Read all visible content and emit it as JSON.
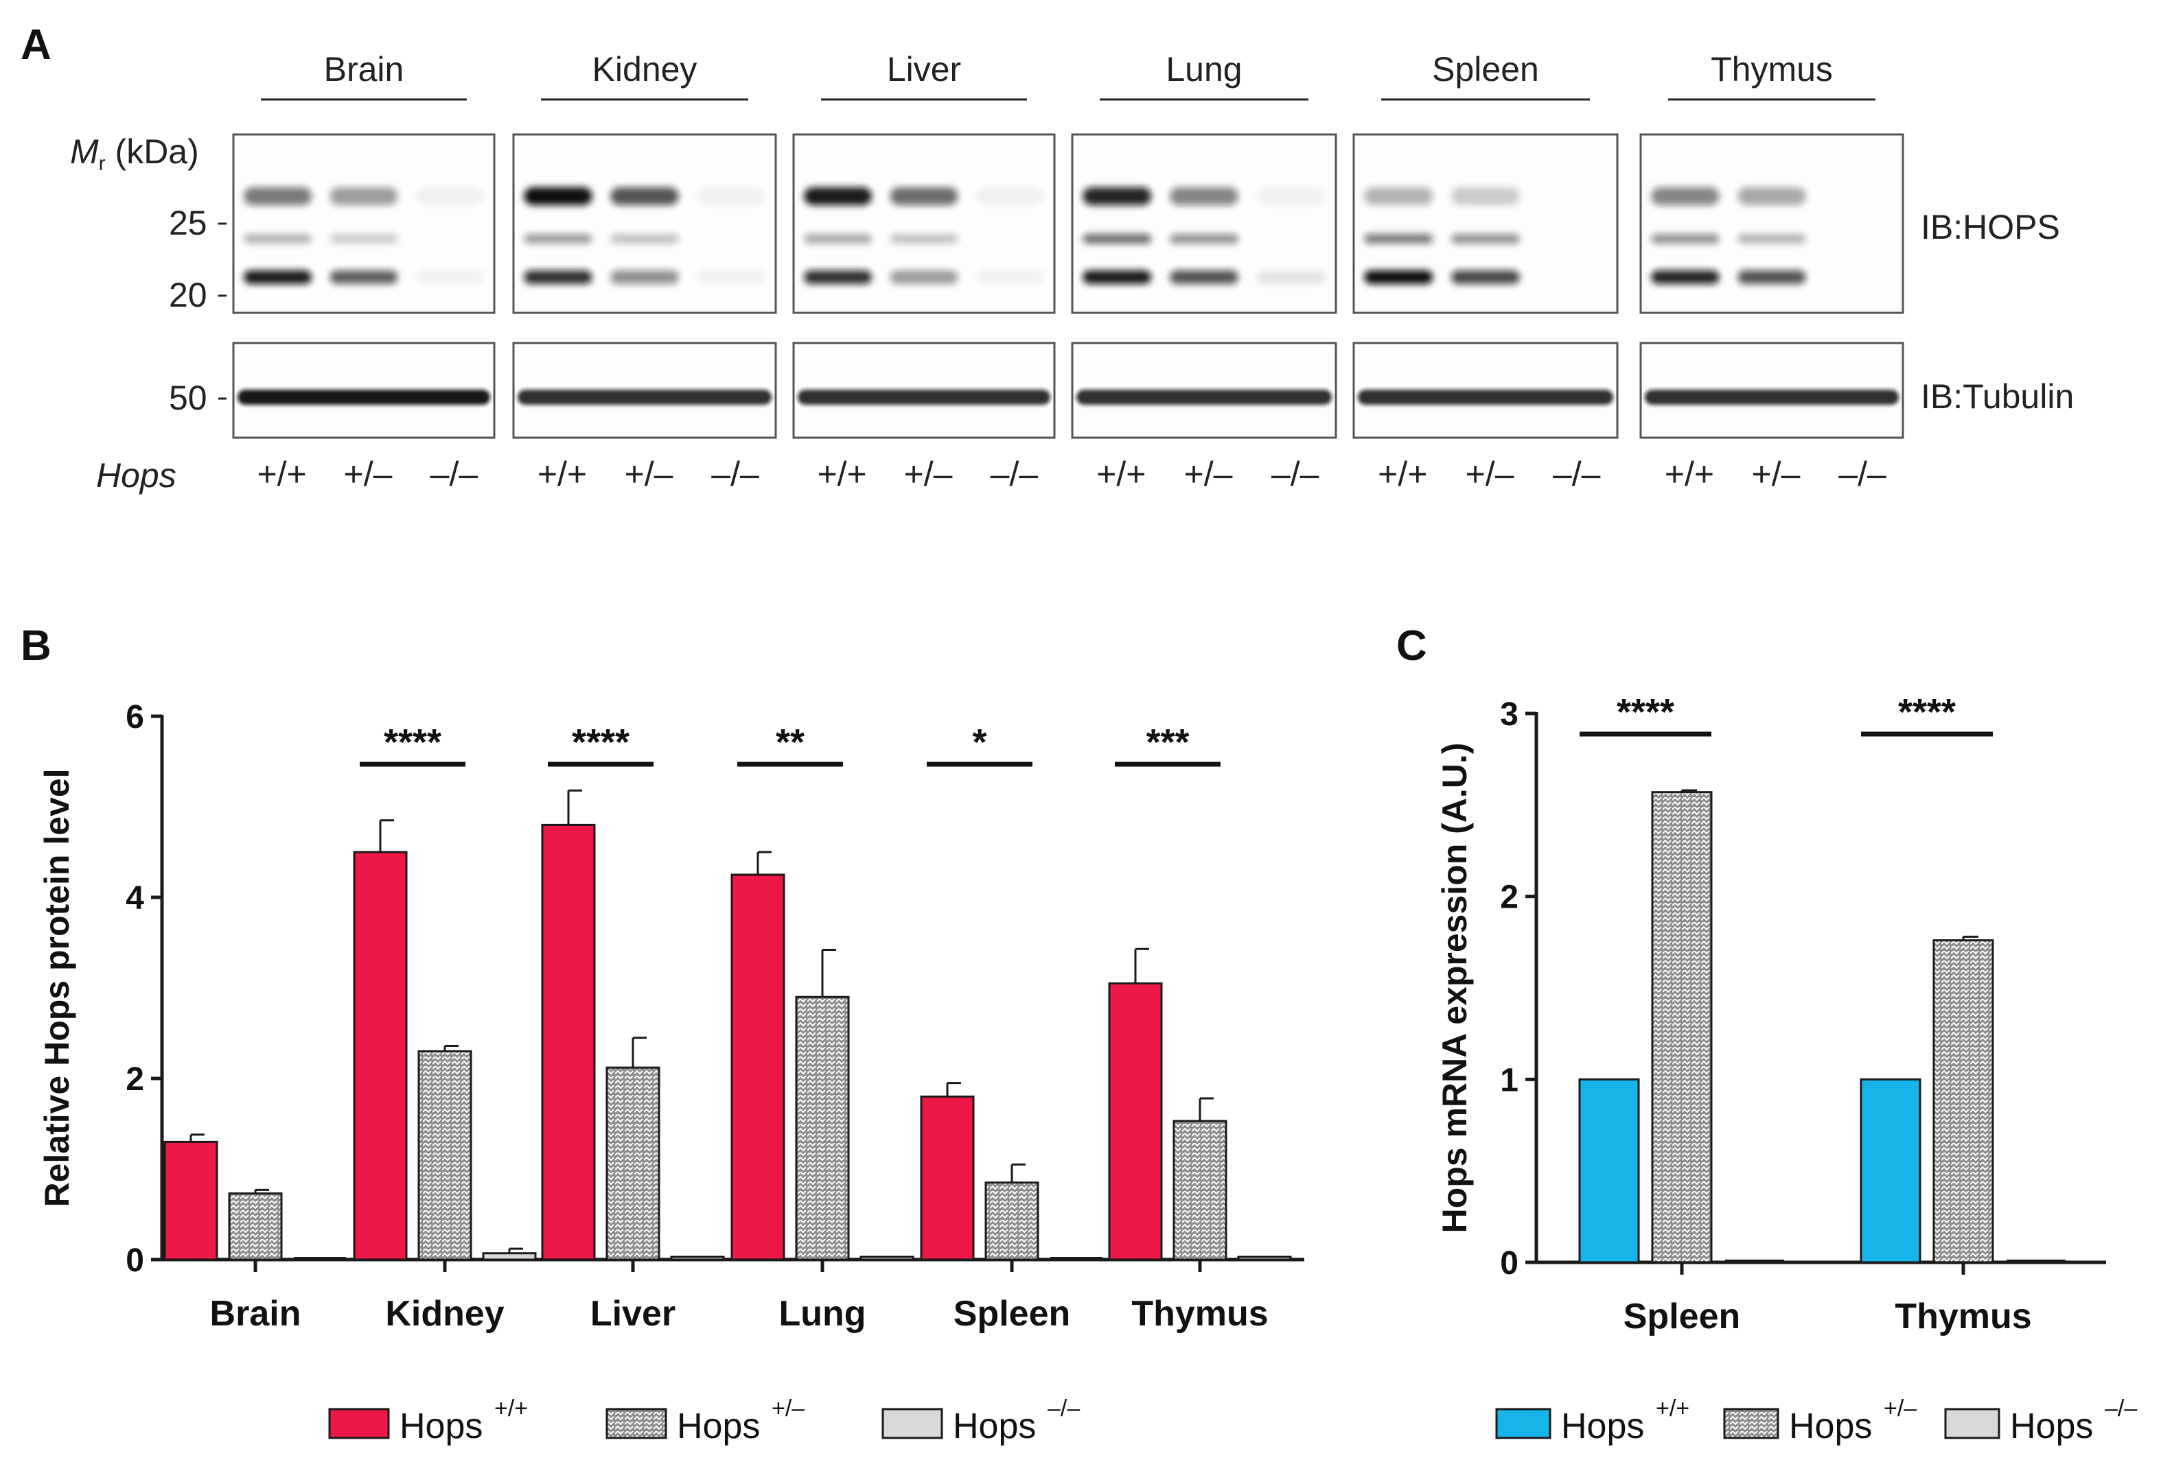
{
  "panel_a": {
    "letter": "A",
    "tissues": [
      "Brain",
      "Kidney",
      "Liver",
      "Lung",
      "Spleen",
      "Thymus"
    ],
    "mr_label_main": "M",
    "mr_label_sub": "r",
    "mr_label_rest": " (kDa)",
    "marker_values": [
      "25",
      "20",
      "50"
    ],
    "blot_labels": [
      "IB:HOPS",
      "IB:Tubulin"
    ],
    "genotype_row_label": "Hops",
    "genotypes": [
      "+/+",
      "+/–",
      "–/–"
    ]
  },
  "colors": {
    "wt": "#EE1846",
    "het": "#8E8E8E",
    "ko": "#D9D9D9",
    "wt_mrna": "#16B4E8",
    "axis": "#1a1a1a"
  },
  "legend_b": {
    "entries": [
      {
        "label": "Hops",
        "sup": "+/+"
      },
      {
        "label": "Hops",
        "sup": "+/–"
      },
      {
        "label": "Hops",
        "sup": "–/–"
      }
    ]
  },
  "legend_c": {
    "entries": [
      {
        "label": "Hops",
        "sup": "+/+"
      },
      {
        "label": "Hops",
        "sup": "+/–"
      },
      {
        "label": "Hops",
        "sup": "–/–"
      }
    ]
  },
  "chart_data": [
    {
      "panel": "B",
      "type": "bar",
      "ylabel": "Relative Hops protein level",
      "xlabel": "",
      "ylim": [
        0,
        6
      ],
      "yticks": [
        0,
        2,
        4,
        6
      ],
      "categories": [
        "Brain",
        "Kidney",
        "Liver",
        "Lung",
        "Spleen",
        "Thymus"
      ],
      "series": [
        {
          "name": "Hops +/+",
          "values": [
            1.3,
            4.5,
            4.8,
            4.25,
            1.8,
            3.05
          ],
          "errors": [
            0.08,
            0.35,
            0.38,
            0.25,
            0.15,
            0.38
          ]
        },
        {
          "name": "Hops +/–",
          "values": [
            0.73,
            2.3,
            2.12,
            2.9,
            0.85,
            1.53
          ],
          "errors": [
            0.04,
            0.06,
            0.33,
            0.52,
            0.2,
            0.25
          ]
        },
        {
          "name": "Hops –/–",
          "values": [
            0.0,
            0.07,
            0.03,
            0.03,
            0.0,
            0.03
          ],
          "errors": [
            0.0,
            0.05,
            0.0,
            0.0,
            0.0,
            0.0
          ]
        }
      ],
      "significance": [
        "",
        "****",
        "****",
        "**",
        "*",
        "***"
      ],
      "legend": "bottom"
    },
    {
      "panel": "C",
      "type": "bar",
      "ylabel": "Hops mRNA expression (A.U.)",
      "xlabel": "",
      "ylim": [
        0,
        3
      ],
      "yticks": [
        0,
        1,
        2,
        3
      ],
      "categories": [
        "Spleen",
        "Thymus"
      ],
      "series": [
        {
          "name": "Hops +/+",
          "values": [
            1.0,
            1.0
          ],
          "errors": [
            0,
            0
          ]
        },
        {
          "name": "Hops +/–",
          "values": [
            2.57,
            1.76
          ],
          "errors": [
            0.01,
            0.02
          ]
        },
        {
          "name": "Hops –/–",
          "values": [
            0.0,
            0.0
          ],
          "errors": [
            0,
            0
          ]
        }
      ],
      "significance": [
        "****",
        "****"
      ],
      "legend": "bottom"
    }
  ]
}
